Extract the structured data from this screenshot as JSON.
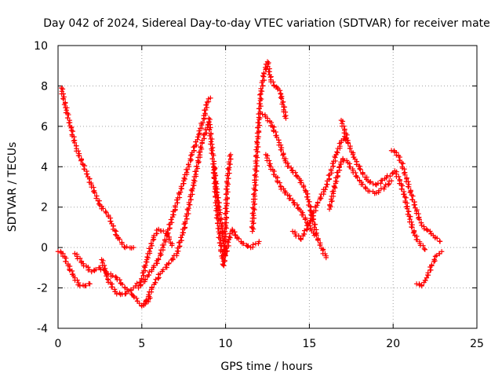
{
  "chart_data": {
    "type": "scatter",
    "title": "Day 042 of 2024, Sidereal Day-to-day VTEC variation (SDTVAR) for receiver mate",
    "xlabel": "GPS time / hours",
    "ylabel": "SDTVAR / TECUs",
    "xlim": [
      0,
      25
    ],
    "ylim": [
      -4,
      10
    ],
    "xticks": [
      0,
      5,
      10,
      15,
      20,
      25
    ],
    "yticks": [
      -4,
      -2,
      0,
      2,
      4,
      6,
      8,
      10
    ],
    "grid": true,
    "marker": "+",
    "color": "#ff0000",
    "series": [
      {
        "name": "trace-1",
        "x": [
          0.2,
          0.5,
          0.8,
          1.1,
          1.5,
          2.0,
          2.5,
          3.0,
          3.5,
          4.0,
          4.5
        ],
        "y": [
          7.9,
          6.8,
          5.8,
          4.9,
          4.1,
          3.1,
          2.1,
          1.6,
          0.6,
          0.0,
          0.0
        ]
      },
      {
        "name": "trace-2",
        "x": [
          0.0,
          0.3,
          0.6,
          1.0,
          1.3,
          1.6,
          1.9
        ],
        "y": [
          -0.2,
          -0.3,
          -0.9,
          -1.5,
          -1.9,
          -1.9,
          -1.8
        ]
      },
      {
        "name": "trace-3",
        "x": [
          1.0,
          1.5,
          2.0,
          2.5,
          3.0,
          3.5,
          4.0,
          4.5,
          5.0,
          5.5
        ],
        "y": [
          -0.3,
          -0.8,
          -1.2,
          -1.0,
          -1.3,
          -1.5,
          -2.0,
          -2.4,
          -2.9,
          -2.5
        ]
      },
      {
        "name": "trace-4",
        "x": [
          2.6,
          3.0,
          3.5,
          4.0,
          4.5,
          5.0,
          5.3,
          5.7,
          6.0,
          6.5,
          6.8
        ],
        "y": [
          -0.6,
          -1.6,
          -2.3,
          -2.3,
          -2.0,
          -1.6,
          -0.6,
          0.5,
          0.9,
          0.7,
          0.1
        ]
      },
      {
        "name": "trace-5",
        "x": [
          4.8,
          5.2,
          5.6,
          6.0,
          6.5,
          7.0,
          7.5,
          8.0,
          8.4,
          8.7,
          8.9,
          9.1
        ],
        "y": [
          -2.0,
          -1.6,
          -1.1,
          -0.6,
          0.6,
          2.0,
          3.3,
          4.6,
          5.6,
          6.4,
          7.2,
          7.4
        ]
      },
      {
        "name": "trace-6",
        "x": [
          5.2,
          5.6,
          6.1,
          6.6,
          7.1,
          7.6,
          8.1,
          8.6,
          9.0
        ],
        "y": [
          -2.8,
          -2.0,
          -1.3,
          -0.8,
          -0.3,
          1.2,
          3.2,
          5.2,
          6.2
        ]
      },
      {
        "name": "trace-7",
        "x": [
          9.0,
          9.2,
          9.4,
          9.6,
          9.8,
          10.0,
          10.2,
          10.4,
          10.6,
          11.0,
          11.5,
          12.0
        ],
        "y": [
          6.4,
          4.8,
          3.2,
          2.0,
          0.8,
          -0.4,
          0.4,
          0.9,
          0.6,
          0.2,
          0.0,
          0.3
        ]
      },
      {
        "name": "trace-8",
        "x": [
          9.3,
          9.5,
          9.7,
          9.9,
          10.0,
          10.1,
          10.3
        ],
        "y": [
          4.0,
          1.6,
          0.1,
          -0.9,
          1.1,
          3.2,
          4.6
        ]
      },
      {
        "name": "trace-9",
        "x": [
          11.6,
          11.9,
          12.1,
          12.3,
          12.5,
          12.7,
          12.9,
          13.1,
          13.3,
          13.6
        ],
        "y": [
          0.8,
          5.2,
          7.6,
          8.6,
          9.2,
          8.3,
          8.0,
          7.9,
          7.6,
          6.4
        ]
      },
      {
        "name": "trace-10",
        "x": [
          12.2,
          12.5,
          12.8,
          13.2,
          13.6,
          14.0,
          14.4,
          14.8,
          15.1,
          15.5,
          16.0
        ],
        "y": [
          6.6,
          6.4,
          6.0,
          5.2,
          4.2,
          3.8,
          3.4,
          2.8,
          1.8,
          0.4,
          -0.5
        ]
      },
      {
        "name": "trace-11",
        "x": [
          12.4,
          12.7,
          13.0,
          13.3,
          13.7,
          14.1,
          14.5,
          14.9,
          15.3
        ],
        "y": [
          4.6,
          4.0,
          3.5,
          3.0,
          2.6,
          2.2,
          1.8,
          1.2,
          0.6
        ]
      },
      {
        "name": "trace-12",
        "x": [
          14.0,
          14.5,
          15.0,
          15.5,
          16.0,
          16.3,
          16.6,
          16.9,
          17.1,
          17.3,
          17.6,
          18.0,
          18.5,
          19.0,
          19.5,
          20.0
        ],
        "y": [
          0.8,
          0.4,
          1.2,
          2.2,
          3.0,
          3.8,
          4.6,
          5.2,
          5.5,
          5.2,
          4.6,
          3.9,
          3.3,
          3.1,
          3.4,
          3.7
        ]
      },
      {
        "name": "trace-13",
        "x": [
          16.2,
          16.5,
          16.8,
          17.0,
          17.3,
          17.6,
          18.0,
          18.5,
          19.0,
          19.5,
          19.9
        ],
        "y": [
          1.9,
          3.0,
          4.0,
          4.4,
          4.2,
          3.8,
          3.3,
          2.8,
          2.7,
          3.0,
          3.3
        ]
      },
      {
        "name": "trace-14",
        "x": [
          16.9,
          17.1,
          17.3
        ],
        "y": [
          6.3,
          5.8,
          5.3
        ]
      },
      {
        "name": "trace-15",
        "x": [
          19.9,
          20.2,
          20.5,
          20.8,
          21.1,
          21.4,
          21.7,
          22.0,
          22.4,
          22.8
        ],
        "y": [
          4.8,
          4.7,
          4.2,
          3.4,
          2.6,
          1.8,
          1.1,
          0.9,
          0.6,
          0.3
        ]
      },
      {
        "name": "trace-16",
        "x": [
          20.1,
          20.4,
          20.7,
          21.0,
          21.3,
          21.6,
          21.9
        ],
        "y": [
          3.8,
          3.3,
          2.5,
          1.4,
          0.6,
          0.2,
          -0.1
        ]
      },
      {
        "name": "trace-17",
        "x": [
          21.4,
          21.7,
          22.0,
          22.3,
          22.6,
          22.9
        ],
        "y": [
          -1.8,
          -1.9,
          -1.5,
          -0.9,
          -0.4,
          -0.2
        ]
      }
    ]
  }
}
